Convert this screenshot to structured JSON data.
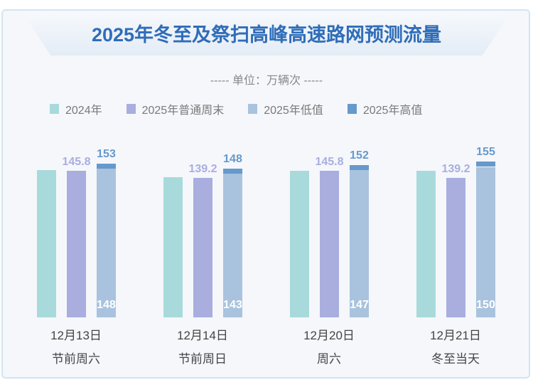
{
  "title": "2025年冬至及祭扫高峰高速路网预测流量",
  "unit": "----- 单位：万辆次 -----",
  "colors": {
    "y2024": "#a8dadb",
    "weekend": "#a9aedf",
    "low": "#a9c3de",
    "high": "#6699cc"
  },
  "chart_data": {
    "type": "bar",
    "title": "2025年冬至及祭扫高峰高速路网预测流量",
    "ylabel": "万辆次",
    "legend": [
      "2024年",
      "2025年普通周末",
      "2025年低值",
      "2025年高值"
    ],
    "legend_position": "top",
    "categories": [
      {
        "date": "12月13日",
        "label": "节前周六"
      },
      {
        "date": "12月14日",
        "label": "节前周日"
      },
      {
        "date": "12月20日",
        "label": "周六"
      },
      {
        "date": "12月21日",
        "label": "冬至当天"
      }
    ],
    "series": [
      {
        "name": "2024年",
        "values": [
          146.8,
          139.7,
          146,
          146
        ],
        "estimated": true
      },
      {
        "name": "2025年普通周末",
        "values": [
          145.8,
          139.2,
          145.8,
          139.2
        ]
      },
      {
        "name": "2025年低值",
        "values": [
          148,
          143,
          147,
          150
        ]
      },
      {
        "name": "2025年高值",
        "values": [
          153,
          148,
          152,
          155
        ]
      }
    ],
    "ylim": [
      0,
      160
    ],
    "grid": false
  }
}
